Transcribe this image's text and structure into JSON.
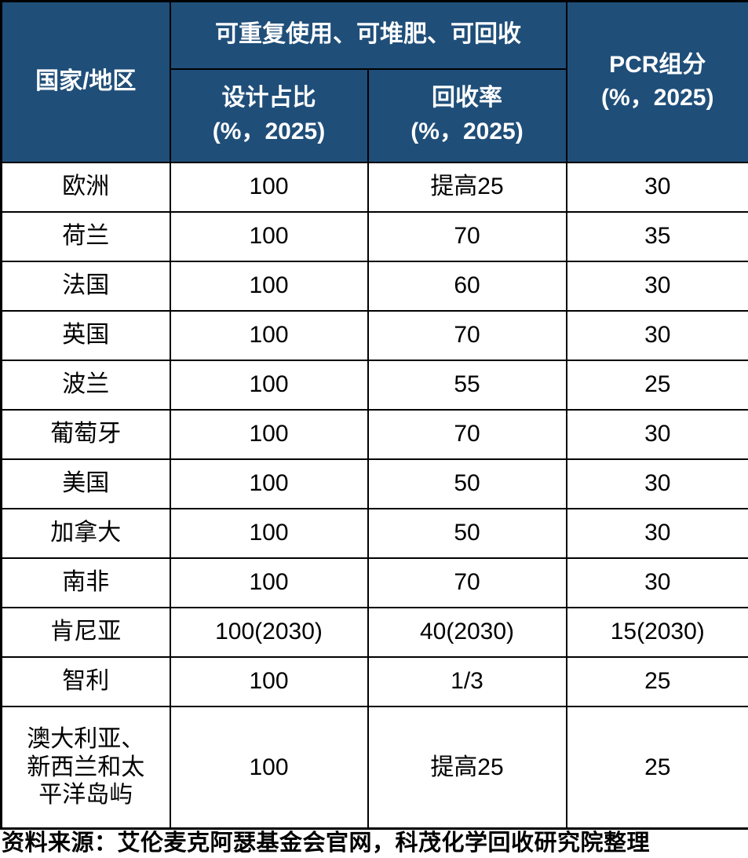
{
  "colors": {
    "header_bg": "#1F4E79",
    "header_fg": "#FFFFFF",
    "border": "#000000",
    "body_text": "#000000"
  },
  "chart_data": {
    "type": "table",
    "header": {
      "country": "国家/地区",
      "group": "可重复使用、可堆肥、可回收",
      "design": "设计占比\n(%，2025)",
      "recycle": "回收率\n(%，2025)",
      "pcr": "PCR组分\n(%，2025)"
    },
    "rows": [
      {
        "country": "欧洲",
        "design": "100",
        "recycle": "提高25",
        "pcr": "30"
      },
      {
        "country": "荷兰",
        "design": "100",
        "recycle": "70",
        "pcr": "35"
      },
      {
        "country": "法国",
        "design": "100",
        "recycle": "60",
        "pcr": "30"
      },
      {
        "country": "英国",
        "design": "100",
        "recycle": "70",
        "pcr": "30"
      },
      {
        "country": "波兰",
        "design": "100",
        "recycle": "55",
        "pcr": "25"
      },
      {
        "country": "葡萄牙",
        "design": "100",
        "recycle": "70",
        "pcr": "30"
      },
      {
        "country": "美国",
        "design": "100",
        "recycle": "50",
        "pcr": "30"
      },
      {
        "country": "加拿大",
        "design": "100",
        "recycle": "50",
        "pcr": "30"
      },
      {
        "country": "南非",
        "design": "100",
        "recycle": "70",
        "pcr": "30"
      },
      {
        "country": "肯尼亚",
        "design": "100(2030)",
        "recycle": "40(2030)",
        "pcr": "15(2030)"
      },
      {
        "country": "智利",
        "design": "100",
        "recycle": "1/3",
        "pcr": "25"
      },
      {
        "country": "澳大利亚、\n新西兰和太\n平洋岛屿",
        "design": "100",
        "recycle": "提高25",
        "pcr": "25"
      }
    ],
    "source": "资料来源：艾伦麦克阿瑟基金会官网，科茂化学回收研究院整理"
  }
}
